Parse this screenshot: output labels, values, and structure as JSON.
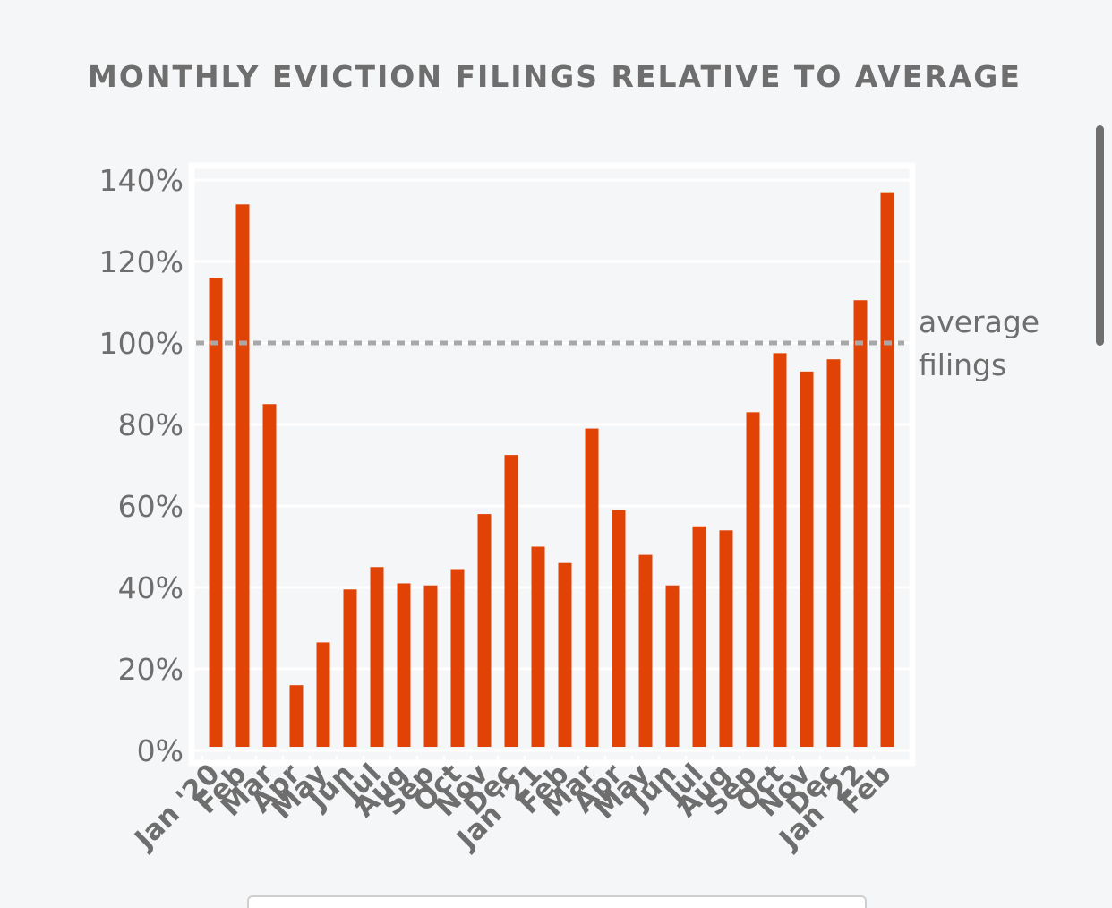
{
  "chart_title": "MONTHLY EVICTION FILINGS RELATIVE TO AVERAGE",
  "colors": {
    "bar": "#e04305",
    "grid": "#ffffff",
    "axis_text": "#6e6e6e",
    "reference_line": "#a8a8a8",
    "background": "#f5f6f7"
  },
  "chart_data": {
    "type": "bar",
    "title": "MONTHLY EVICTION FILINGS RELATIVE TO AVERAGE",
    "xlabel": "",
    "ylabel": "",
    "ylim": [
      0,
      140
    ],
    "yticks": [
      "0%",
      "20%",
      "40%",
      "60%",
      "80%",
      "100%",
      "120%",
      "140%"
    ],
    "ytick_values": [
      0,
      20,
      40,
      60,
      80,
      100,
      120,
      140
    ],
    "grid": true,
    "categories": [
      "Jan '20",
      "Feb",
      "Mar",
      "Apr",
      "May",
      "Jun",
      "Jul",
      "Aug",
      "Sep",
      "Oct",
      "Nov",
      "Dec",
      "Jan '21",
      "Feb",
      "Mar",
      "Apr",
      "May",
      "Jun",
      "Jul",
      "Aug",
      "Sep",
      "Oct",
      "Nov",
      "Dec",
      "Jan '22",
      "Feb"
    ],
    "values": [
      116,
      134,
      85,
      16,
      26.5,
      39.5,
      45,
      41,
      40.5,
      44.5,
      58,
      72.5,
      50,
      46,
      79,
      59,
      48,
      40.5,
      55,
      54,
      83,
      97.5,
      93,
      96,
      110.5,
      137
    ],
    "reference_line": {
      "value": 100,
      "label_lines": [
        "average",
        "filings"
      ]
    }
  }
}
